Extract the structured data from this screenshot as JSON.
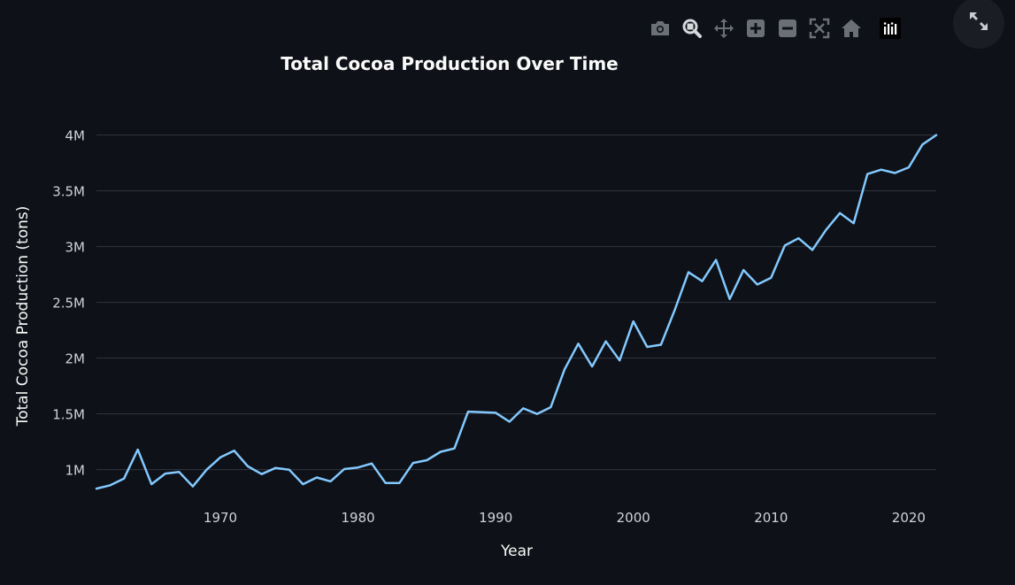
{
  "modebar": {
    "icons": [
      "camera-icon",
      "zoom-icon",
      "pan-icon",
      "zoom-in-icon",
      "zoom-out-icon",
      "autoscale-icon",
      "home-icon",
      "plotly-logo-icon"
    ]
  },
  "fullscreen": {
    "icon": "fullscreen-icon"
  },
  "colors": {
    "background": "#0e1117",
    "line": "#83c9ff",
    "grid": "#31353f",
    "text": "#fafafa",
    "tick_text": "#d0d2d6",
    "icon": "#6b6f78"
  },
  "chart_data": {
    "type": "line",
    "title": "Total Cocoa Production Over Time",
    "xlabel": "Year",
    "ylabel": "Total Cocoa Production (tons)",
    "xlim": [
      1961,
      2022
    ],
    "ylim": [
      680000,
      4100000
    ],
    "x_ticks": [
      1970,
      1980,
      1990,
      2000,
      2010,
      2020
    ],
    "x_tick_labels": [
      "1970",
      "1980",
      "1990",
      "2000",
      "2010",
      "2020"
    ],
    "y_ticks": [
      1000000,
      1500000,
      2000000,
      2500000,
      3000000,
      3500000,
      4000000
    ],
    "y_tick_labels": [
      "1M",
      "1.5M",
      "2M",
      "2.5M",
      "3M",
      "3.5M",
      "4M"
    ],
    "grid": true,
    "series": [
      {
        "x": [
          1961,
          1962,
          1963,
          1964,
          1965,
          1966,
          1967,
          1968,
          1969,
          1970,
          1971,
          1972,
          1973,
          1974,
          1975,
          1976,
          1977,
          1978,
          1979,
          1980,
          1981,
          1982,
          1983,
          1984,
          1985,
          1986,
          1987,
          1988,
          1989,
          1990,
          1991,
          1992,
          1993,
          1994,
          1995,
          1996,
          1997,
          1998,
          1999,
          2000,
          2001,
          2002,
          2003,
          2004,
          2005,
          2006,
          2007,
          2008,
          2009,
          2010,
          2011,
          2012,
          2013,
          2014,
          2015,
          2016,
          2017,
          2018,
          2019,
          2020,
          2021,
          2022
        ],
        "values": [
          830000,
          860000,
          920000,
          1180000,
          870000,
          965000,
          980000,
          850000,
          1000000,
          1110000,
          1170000,
          1030000,
          960000,
          1015000,
          1000000,
          870000,
          930000,
          895000,
          1005000,
          1020000,
          1055000,
          880000,
          880000,
          1060000,
          1085000,
          1160000,
          1190000,
          1520000,
          1515000,
          1510000,
          1430000,
          1550000,
          1500000,
          1560000,
          1900000,
          2130000,
          1925000,
          2150000,
          1980000,
          2330000,
          2100000,
          2120000,
          2430000,
          2770000,
          2690000,
          2880000,
          2530000,
          2790000,
          2660000,
          2720000,
          3010000,
          3075000,
          2970000,
          3150000,
          3300000,
          3210000,
          3650000,
          3690000,
          3660000,
          3710000,
          3915000,
          4000000
        ]
      }
    ]
  }
}
